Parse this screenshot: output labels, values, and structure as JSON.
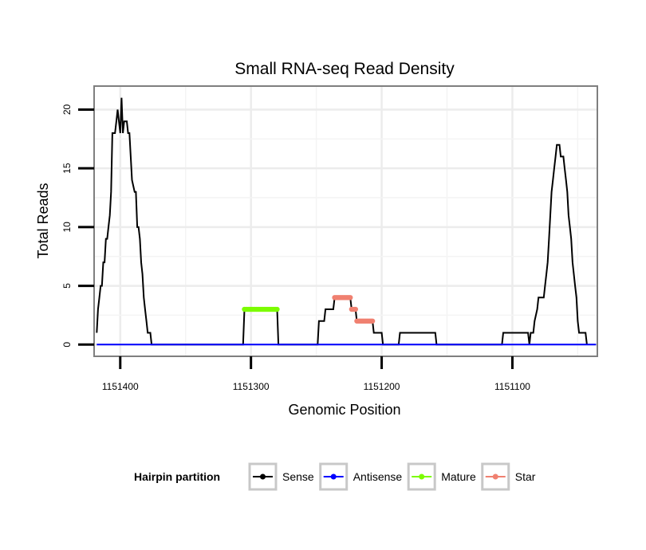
{
  "chart_data": {
    "type": "line",
    "title": "Small RNA-seq Read Density",
    "xlabel": "Genomic Position",
    "ylabel": "Total Reads",
    "xlim": [
      1151035,
      1151420
    ],
    "x_reversed": true,
    "ylim": [
      -1,
      22
    ],
    "x_ticks": [
      1151400,
      1151300,
      1151200,
      1151100
    ],
    "x_tick_labels": [
      "1151400",
      "1151300",
      "1151200",
      "1151100"
    ],
    "y_ticks": [
      0,
      5,
      10,
      15,
      20
    ],
    "y_tick_labels": [
      "0",
      "5",
      "10",
      "15",
      "20"
    ],
    "grid": true,
    "legend_title": "Hairpin partition",
    "legend_position": "bottom",
    "series": [
      {
        "name": "Sense",
        "color": "#000000",
        "style": "line",
        "points": [
          [
            1151418,
            1
          ],
          [
            1151417,
            3
          ],
          [
            1151416,
            4
          ],
          [
            1151415,
            5
          ],
          [
            1151414,
            5
          ],
          [
            1151413,
            7
          ],
          [
            1151412,
            7
          ],
          [
            1151411,
            9
          ],
          [
            1151410,
            9
          ],
          [
            1151409,
            10
          ],
          [
            1151408,
            11
          ],
          [
            1151407,
            13
          ],
          [
            1151406,
            18
          ],
          [
            1151404,
            18
          ],
          [
            1151403,
            19
          ],
          [
            1151402,
            20
          ],
          [
            1151401,
            19
          ],
          [
            1151400,
            18
          ],
          [
            1151399,
            21
          ],
          [
            1151398,
            18
          ],
          [
            1151397,
            19
          ],
          [
            1151395,
            19
          ],
          [
            1151394,
            18
          ],
          [
            1151393,
            18
          ],
          [
            1151392,
            16
          ],
          [
            1151391,
            14
          ],
          [
            1151389,
            13
          ],
          [
            1151388,
            13
          ],
          [
            1151387,
            10
          ],
          [
            1151386,
            10
          ],
          [
            1151385,
            9
          ],
          [
            1151384,
            7
          ],
          [
            1151383,
            6
          ],
          [
            1151382,
            4
          ],
          [
            1151381,
            3
          ],
          [
            1151380,
            2
          ],
          [
            1151379,
            1
          ],
          [
            1151378,
            1
          ],
          [
            1151377,
            1
          ],
          [
            1151376,
            0
          ],
          [
            1151306,
            0
          ],
          [
            1151305,
            3
          ],
          [
            1151280,
            3
          ],
          [
            1151279,
            0
          ],
          [
            1151249,
            0
          ],
          [
            1151248,
            2
          ],
          [
            1151244,
            2
          ],
          [
            1151243,
            3
          ],
          [
            1151237,
            3
          ],
          [
            1151236,
            4
          ],
          [
            1151224,
            4
          ],
          [
            1151223,
            3
          ],
          [
            1151220,
            3
          ],
          [
            1151219,
            2
          ],
          [
            1151207,
            2
          ],
          [
            1151206,
            1
          ],
          [
            1151200,
            1
          ],
          [
            1151199,
            0
          ],
          [
            1151187,
            0
          ],
          [
            1151186,
            1
          ],
          [
            1151159,
            1
          ],
          [
            1151158,
            0
          ],
          [
            1151108,
            0
          ],
          [
            1151107,
            1
          ],
          [
            1151088,
            1
          ],
          [
            1151087,
            0
          ],
          [
            1151086,
            1
          ],
          [
            1151084,
            1
          ],
          [
            1151083,
            2
          ],
          [
            1151081,
            3
          ],
          [
            1151080,
            4
          ],
          [
            1151076,
            4
          ],
          [
            1151075,
            5
          ],
          [
            1151074,
            6
          ],
          [
            1151073,
            7
          ],
          [
            1151072,
            9
          ],
          [
            1151071,
            11
          ],
          [
            1151070,
            13
          ],
          [
            1151069,
            14
          ],
          [
            1151068,
            15
          ],
          [
            1151067,
            16
          ],
          [
            1151066,
            17
          ],
          [
            1151064,
            17
          ],
          [
            1151063,
            16
          ],
          [
            1151061,
            16
          ],
          [
            1151060,
            15
          ],
          [
            1151059,
            14
          ],
          [
            1151058,
            13
          ],
          [
            1151057,
            11
          ],
          [
            1151056,
            10
          ],
          [
            1151055,
            9
          ],
          [
            1151054,
            7
          ],
          [
            1151053,
            6
          ],
          [
            1151052,
            5
          ],
          [
            1151051,
            4
          ],
          [
            1151050,
            2
          ],
          [
            1151049,
            1
          ],
          [
            1151044,
            1
          ],
          [
            1151043,
            0
          ]
        ]
      },
      {
        "name": "Antisense",
        "color": "#0000ff",
        "style": "line",
        "points": [
          [
            1151418,
            0
          ],
          [
            1151036,
            0
          ]
        ]
      },
      {
        "name": "Mature",
        "color": "#7cfc00",
        "style": "points",
        "points": [
          [
            1151305,
            3
          ],
          [
            1151304,
            3
          ],
          [
            1151303,
            3
          ],
          [
            1151302,
            3
          ],
          [
            1151301,
            3
          ],
          [
            1151300,
            3
          ],
          [
            1151299,
            3
          ],
          [
            1151298,
            3
          ],
          [
            1151297,
            3
          ],
          [
            1151296,
            3
          ],
          [
            1151295,
            3
          ],
          [
            1151294,
            3
          ],
          [
            1151293,
            3
          ],
          [
            1151292,
            3
          ],
          [
            1151291,
            3
          ],
          [
            1151290,
            3
          ],
          [
            1151289,
            3
          ],
          [
            1151288,
            3
          ],
          [
            1151287,
            3
          ],
          [
            1151286,
            3
          ],
          [
            1151285,
            3
          ],
          [
            1151284,
            3
          ],
          [
            1151283,
            3
          ],
          [
            1151282,
            3
          ],
          [
            1151281,
            3
          ],
          [
            1151280,
            3
          ]
        ]
      },
      {
        "name": "Star",
        "color": "#f08070",
        "style": "points",
        "points": [
          [
            1151236,
            4
          ],
          [
            1151235,
            4
          ],
          [
            1151234,
            4
          ],
          [
            1151233,
            4
          ],
          [
            1151232,
            4
          ],
          [
            1151231,
            4
          ],
          [
            1151230,
            4
          ],
          [
            1151229,
            4
          ],
          [
            1151228,
            4
          ],
          [
            1151227,
            4
          ],
          [
            1151226,
            4
          ],
          [
            1151225,
            4
          ],
          [
            1151224,
            4
          ],
          [
            1151223,
            3
          ],
          [
            1151222,
            3
          ],
          [
            1151221,
            3
          ],
          [
            1151220,
            3
          ],
          [
            1151219,
            2
          ],
          [
            1151218,
            2
          ],
          [
            1151217,
            2
          ],
          [
            1151216,
            2
          ],
          [
            1151215,
            2
          ],
          [
            1151214,
            2
          ],
          [
            1151213,
            2
          ],
          [
            1151212,
            2
          ],
          [
            1151211,
            2
          ],
          [
            1151210,
            2
          ],
          [
            1151209,
            2
          ],
          [
            1151208,
            2
          ],
          [
            1151207,
            2
          ]
        ]
      }
    ]
  }
}
